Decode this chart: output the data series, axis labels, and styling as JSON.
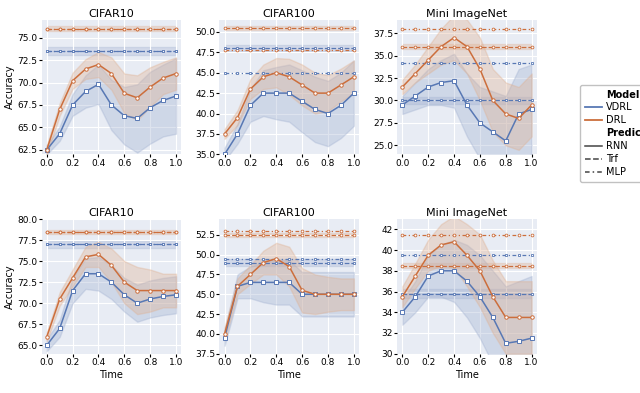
{
  "titles_row1": [
    "CIFAR10",
    "CIFAR100",
    "Mini ImageNet"
  ],
  "titles_row2": [
    "CIFAR10",
    "CIFAR100",
    "Mini ImageNet"
  ],
  "xlabel": "Time",
  "ylabel": "Accuracy",
  "time": [
    0.0,
    0.1,
    0.2,
    0.3,
    0.4,
    0.5,
    0.6,
    0.7,
    0.8,
    0.9,
    1.0
  ],
  "row1": {
    "cifar10": {
      "vdrl_rnn": [
        62.5,
        64.3,
        67.5,
        69.0,
        69.8,
        67.5,
        66.3,
        66.0,
        67.2,
        68.0,
        68.5
      ],
      "vdrl_rnn_std": [
        0.5,
        0.8,
        1.2,
        1.8,
        2.2,
        2.8,
        3.2,
        3.8,
        4.0,
        4.0,
        4.2
      ],
      "drl_rnn": [
        62.5,
        67.0,
        70.2,
        71.5,
        72.0,
        71.0,
        68.8,
        68.3,
        69.5,
        70.5,
        71.0
      ],
      "drl_rnn_std": [
        0.5,
        0.7,
        0.9,
        1.1,
        1.4,
        1.8,
        2.2,
        2.5,
        2.2,
        1.8,
        1.8
      ],
      "vdrl_trf": [
        73.5,
        73.5,
        73.5,
        73.5,
        73.5,
        73.5,
        73.5,
        73.5,
        73.5,
        73.5,
        73.5
      ],
      "vdrl_trf_std": [
        0.4,
        0.4,
        0.4,
        0.4,
        0.4,
        0.4,
        0.4,
        0.4,
        0.4,
        0.4,
        0.4
      ],
      "drl_trf": [
        76.0,
        76.0,
        76.0,
        76.0,
        76.0,
        76.0,
        76.0,
        76.0,
        76.0,
        76.0,
        76.0
      ],
      "drl_trf_std": [
        0.25,
        0.25,
        0.25,
        0.25,
        0.25,
        0.25,
        0.25,
        0.25,
        0.25,
        0.25,
        0.25
      ],
      "vdrl_mlp": [
        73.5,
        73.5,
        73.5,
        73.5,
        73.5,
        73.5,
        73.5,
        73.5,
        73.5,
        73.5,
        73.5
      ],
      "drl_mlp": [
        76.0,
        76.0,
        76.0,
        76.0,
        76.0,
        76.0,
        76.0,
        76.0,
        76.0,
        76.0,
        76.0
      ],
      "ylim": [
        62,
        77
      ]
    },
    "cifar100": {
      "vdrl_rnn": [
        35.0,
        37.5,
        41.0,
        42.5,
        42.5,
        42.5,
        41.5,
        40.5,
        40.0,
        41.0,
        42.5
      ],
      "vdrl_rnn_std": [
        0.8,
        1.2,
        2.0,
        2.8,
        3.2,
        3.5,
        3.8,
        4.0,
        4.0,
        4.0,
        4.0
      ],
      "drl_rnn": [
        37.5,
        39.5,
        43.0,
        44.5,
        45.0,
        44.5,
        43.5,
        42.5,
        42.5,
        43.5,
        44.5
      ],
      "drl_rnn_std": [
        0.6,
        0.9,
        1.2,
        1.5,
        1.8,
        2.2,
        2.5,
        2.5,
        2.2,
        2.0,
        2.0
      ],
      "vdrl_trf": [
        48.0,
        48.0,
        48.0,
        48.0,
        48.0,
        48.0,
        48.0,
        48.0,
        48.0,
        48.0,
        48.0
      ],
      "vdrl_trf_std": [
        0.4,
        0.4,
        0.4,
        0.4,
        0.4,
        0.4,
        0.4,
        0.4,
        0.4,
        0.4,
        0.4
      ],
      "drl_trf": [
        50.5,
        50.5,
        50.5,
        50.5,
        50.5,
        50.5,
        50.5,
        50.5,
        50.5,
        50.5,
        50.5
      ],
      "drl_trf_std": [
        0.25,
        0.25,
        0.25,
        0.25,
        0.25,
        0.25,
        0.25,
        0.25,
        0.25,
        0.25,
        0.25
      ],
      "vdrl_mlp": [
        45.0,
        45.0,
        45.0,
        45.0,
        45.0,
        45.0,
        45.0,
        45.0,
        45.0,
        45.0,
        45.0
      ],
      "drl_mlp": [
        47.8,
        47.8,
        47.8,
        47.8,
        47.8,
        47.8,
        47.8,
        47.8,
        47.8,
        47.8,
        47.8
      ],
      "ylim": [
        35.0,
        51.5
      ]
    },
    "mini": {
      "vdrl_rnn": [
        29.5,
        30.5,
        31.5,
        32.0,
        32.2,
        29.5,
        27.5,
        26.5,
        25.5,
        28.5,
        29.0
      ],
      "vdrl_rnn_std": [
        1.0,
        1.5,
        2.0,
        2.5,
        3.0,
        3.5,
        4.0,
        4.5,
        5.0,
        5.0,
        5.0
      ],
      "drl_rnn": [
        31.5,
        33.0,
        34.5,
        36.0,
        37.0,
        36.0,
        33.5,
        30.0,
        28.5,
        28.0,
        29.5
      ],
      "drl_rnn_std": [
        0.8,
        1.0,
        1.5,
        2.0,
        2.5,
        3.0,
        3.5,
        3.5,
        3.5,
        3.5,
        3.5
      ],
      "vdrl_trf": [
        30.0,
        30.0,
        30.0,
        30.0,
        30.0,
        30.0,
        30.0,
        30.0,
        30.0,
        30.0,
        30.0
      ],
      "vdrl_trf_std": [
        0.4,
        0.4,
        0.4,
        0.4,
        0.4,
        0.4,
        0.4,
        0.4,
        0.4,
        0.4,
        0.4
      ],
      "drl_trf": [
        36.0,
        36.0,
        36.0,
        36.0,
        36.0,
        36.0,
        36.0,
        36.0,
        36.0,
        36.0,
        36.0
      ],
      "drl_trf_std": [
        0.25,
        0.25,
        0.25,
        0.25,
        0.25,
        0.25,
        0.25,
        0.25,
        0.25,
        0.25,
        0.25
      ],
      "vdrl_mlp": [
        34.2,
        34.2,
        34.2,
        34.2,
        34.2,
        34.2,
        34.2,
        34.2,
        34.2,
        34.2,
        34.2
      ],
      "drl_mlp": [
        38.0,
        38.0,
        38.0,
        38.0,
        38.0,
        38.0,
        38.0,
        38.0,
        38.0,
        38.0,
        38.0
      ],
      "ylim": [
        24,
        39
      ]
    }
  },
  "row2": {
    "cifar10": {
      "vdrl_rnn": [
        65.0,
        67.0,
        71.5,
        73.5,
        73.5,
        72.5,
        71.0,
        70.0,
        70.5,
        70.8,
        71.0
      ],
      "vdrl_rnn_std": [
        0.7,
        1.0,
        1.5,
        1.8,
        2.0,
        2.0,
        2.0,
        2.2,
        2.2,
        2.2,
        2.2
      ],
      "drl_rnn": [
        66.0,
        70.5,
        73.0,
        75.5,
        75.8,
        74.5,
        72.5,
        71.5,
        71.5,
        71.5,
        71.5
      ],
      "drl_rnn_std": [
        0.5,
        0.8,
        1.0,
        1.2,
        1.5,
        2.0,
        2.5,
        2.8,
        2.5,
        2.0,
        2.0
      ],
      "vdrl_trf": [
        77.0,
        77.0,
        77.0,
        77.0,
        77.0,
        77.0,
        77.0,
        77.0,
        77.0,
        77.0,
        77.0
      ],
      "vdrl_trf_std": [
        0.4,
        0.4,
        0.4,
        0.4,
        0.4,
        0.4,
        0.4,
        0.4,
        0.4,
        0.4,
        0.4
      ],
      "drl_trf": [
        78.5,
        78.5,
        78.5,
        78.5,
        78.5,
        78.5,
        78.5,
        78.5,
        78.5,
        78.5,
        78.5
      ],
      "drl_trf_std": [
        0.25,
        0.25,
        0.25,
        0.25,
        0.25,
        0.25,
        0.25,
        0.25,
        0.25,
        0.25,
        0.25
      ],
      "vdrl_mlp": [
        77.0,
        77.0,
        77.0,
        77.0,
        77.0,
        77.0,
        77.0,
        77.0,
        77.0,
        77.0,
        77.0
      ],
      "drl_mlp": [
        78.5,
        78.5,
        78.5,
        78.5,
        78.5,
        78.5,
        78.5,
        78.5,
        78.5,
        78.5,
        78.5
      ],
      "ylim": [
        64,
        80
      ]
    },
    "cifar100": {
      "vdrl_rnn": [
        39.5,
        46.0,
        46.5,
        46.5,
        46.5,
        46.5,
        45.0,
        45.0,
        45.0,
        45.0,
        45.0
      ],
      "vdrl_rnn_std": [
        1.0,
        1.5,
        2.0,
        2.5,
        2.8,
        2.8,
        2.8,
        2.8,
        2.8,
        2.8,
        2.8
      ],
      "drl_rnn": [
        40.0,
        46.0,
        47.5,
        49.0,
        49.5,
        48.5,
        45.5,
        45.0,
        45.0,
        45.0,
        45.0
      ],
      "drl_rnn_std": [
        0.8,
        1.0,
        1.2,
        1.5,
        2.0,
        2.5,
        2.8,
        2.5,
        2.2,
        2.0,
        2.0
      ],
      "vdrl_trf": [
        49.0,
        49.0,
        49.0,
        49.0,
        49.0,
        49.0,
        49.0,
        49.0,
        49.0,
        49.0,
        49.0
      ],
      "vdrl_trf_std": [
        0.4,
        0.4,
        0.4,
        0.4,
        0.4,
        0.4,
        0.4,
        0.4,
        0.4,
        0.4,
        0.4
      ],
      "drl_trf": [
        52.5,
        52.5,
        52.5,
        52.5,
        52.5,
        52.5,
        52.5,
        52.5,
        52.5,
        52.5,
        52.5
      ],
      "drl_trf_std": [
        0.25,
        0.25,
        0.25,
        0.25,
        0.25,
        0.25,
        0.25,
        0.25,
        0.25,
        0.25,
        0.25
      ],
      "vdrl_mlp": [
        49.5,
        49.5,
        49.5,
        49.5,
        49.5,
        49.5,
        49.5,
        49.5,
        49.5,
        49.5,
        49.5
      ],
      "drl_mlp": [
        53.0,
        53.0,
        53.0,
        53.0,
        53.0,
        53.0,
        53.0,
        53.0,
        53.0,
        53.0,
        53.0
      ],
      "ylim": [
        37.5,
        54.5
      ]
    },
    "mini": {
      "vdrl_rnn": [
        34.0,
        35.5,
        37.5,
        38.0,
        38.0,
        37.0,
        35.5,
        33.5,
        31.0,
        31.2,
        31.5
      ],
      "vdrl_rnn_std": [
        1.2,
        1.5,
        2.0,
        2.5,
        3.0,
        3.5,
        4.0,
        4.5,
        5.5,
        5.8,
        6.0
      ],
      "drl_rnn": [
        35.5,
        37.5,
        39.5,
        40.5,
        40.8,
        39.5,
        38.0,
        35.5,
        33.5,
        33.5,
        33.5
      ],
      "drl_rnn_std": [
        1.0,
        1.2,
        1.5,
        2.0,
        2.5,
        3.0,
        3.5,
        3.5,
        3.5,
        3.5,
        3.5
      ],
      "vdrl_trf": [
        35.8,
        35.8,
        35.8,
        35.8,
        35.8,
        35.8,
        35.8,
        35.8,
        35.8,
        35.8,
        35.8
      ],
      "vdrl_trf_std": [
        0.4,
        0.4,
        0.4,
        0.4,
        0.4,
        0.4,
        0.4,
        0.4,
        0.4,
        0.4,
        0.4
      ],
      "drl_trf": [
        38.5,
        38.5,
        38.5,
        38.5,
        38.5,
        38.5,
        38.5,
        38.5,
        38.5,
        38.5,
        38.5
      ],
      "drl_trf_std": [
        0.25,
        0.25,
        0.25,
        0.25,
        0.25,
        0.25,
        0.25,
        0.25,
        0.25,
        0.25,
        0.25
      ],
      "vdrl_mlp": [
        39.5,
        39.5,
        39.5,
        39.5,
        39.5,
        39.5,
        39.5,
        39.5,
        39.5,
        39.5,
        39.5
      ],
      "drl_mlp": [
        41.5,
        41.5,
        41.5,
        41.5,
        41.5,
        41.5,
        41.5,
        41.5,
        41.5,
        41.5,
        41.5
      ],
      "ylim": [
        30,
        43
      ]
    }
  },
  "color_vdrl": "#5878b4",
  "color_drl": "#cc6e3c",
  "color_vdrl_fill": "#a0b0d0",
  "color_drl_fill": "#e0b090",
  "bg_color": "#e8ecf4",
  "grid_color": "#ffffff",
  "title_fontsize": 8,
  "label_fontsize": 7,
  "tick_fontsize": 6.5,
  "legend_fontsize": 7
}
